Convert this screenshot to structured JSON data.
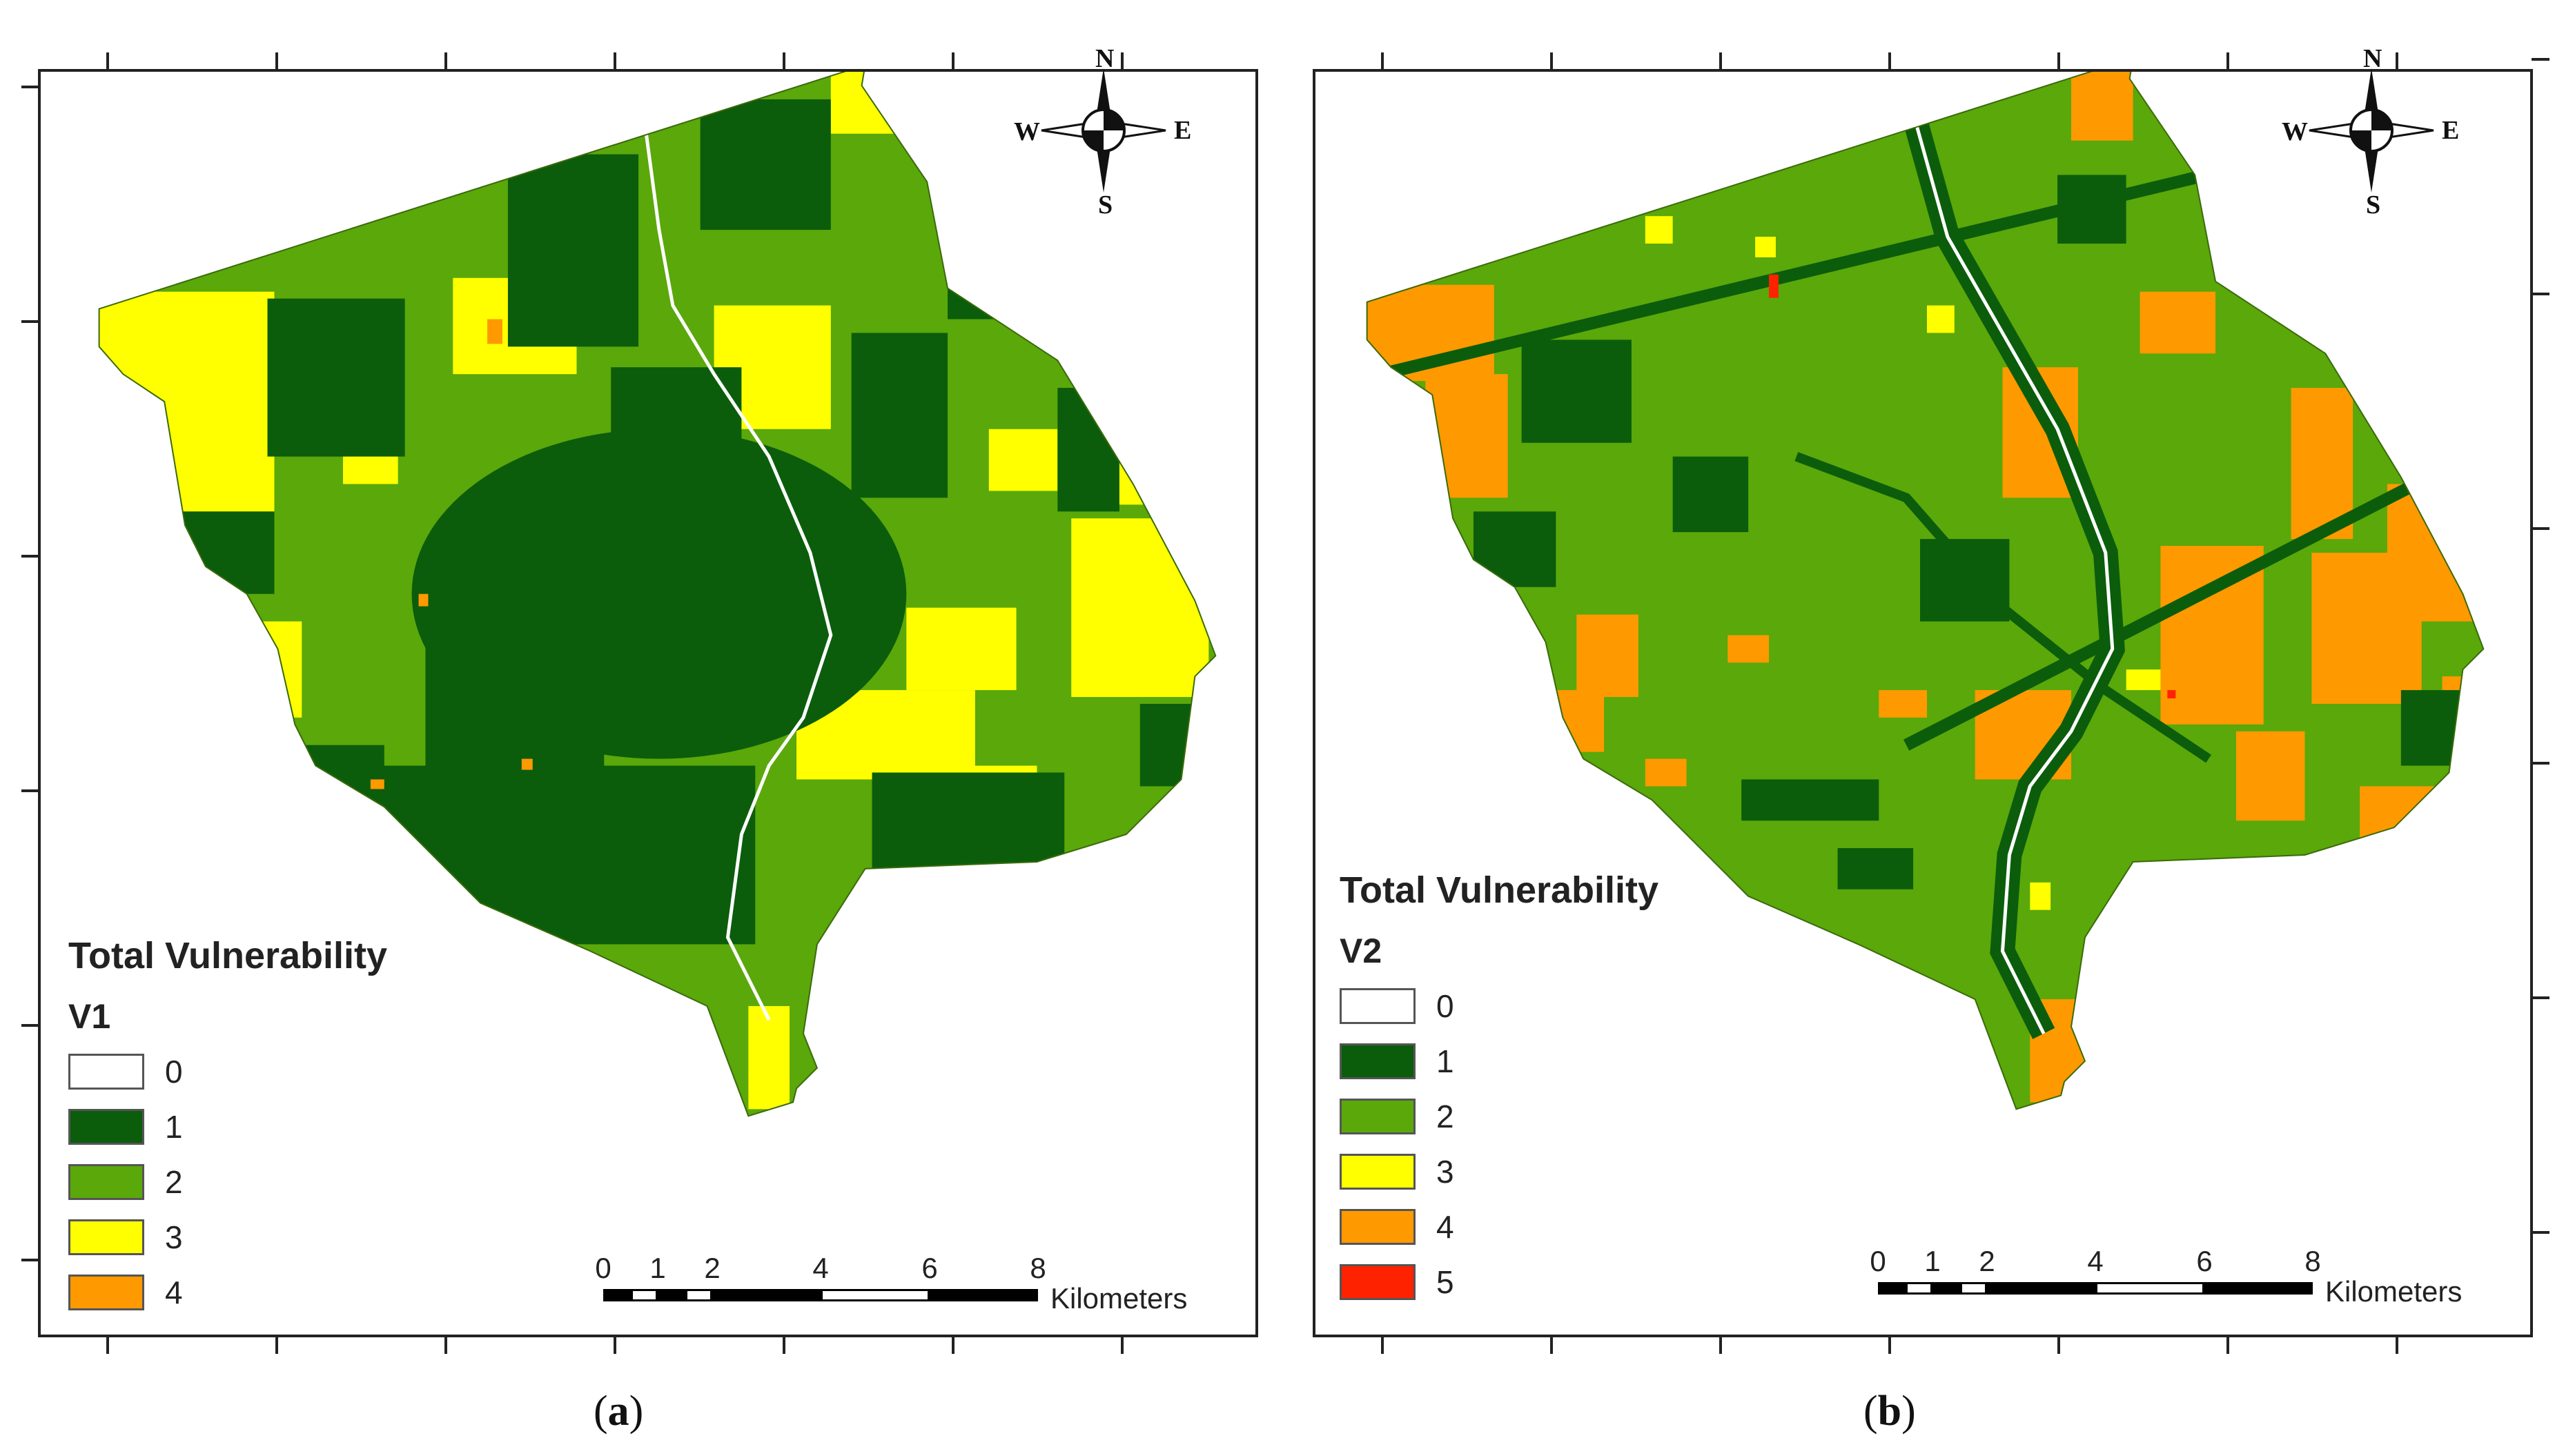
{
  "panels": [
    {
      "id": "a",
      "caption_letter": "a",
      "legend": {
        "title": "Total Vulnerability",
        "field": "V1",
        "classes": [
          {
            "label": "0",
            "color": "#ffffff"
          },
          {
            "label": "1",
            "color": "#0b5d0b"
          },
          {
            "label": "2",
            "color": "#5aa80a"
          },
          {
            "label": "3",
            "color": "#ffff00"
          },
          {
            "label": "4",
            "color": "#ff9900"
          }
        ]
      }
    },
    {
      "id": "b",
      "caption_letter": "b",
      "legend": {
        "title": "Total Vulnerability",
        "field": "V2",
        "classes": [
          {
            "label": "0",
            "color": "#ffffff"
          },
          {
            "label": "1",
            "color": "#0b5d0b"
          },
          {
            "label": "2",
            "color": "#5aa80a"
          },
          {
            "label": "3",
            "color": "#ffff00"
          },
          {
            "label": "4",
            "color": "#ff9900"
          },
          {
            "label": "5",
            "color": "#ff2200"
          }
        ]
      }
    }
  ],
  "compass": {
    "n": "N",
    "s": "S",
    "e": "E",
    "w": "W"
  },
  "scalebar": {
    "labels": [
      "0",
      "1",
      "2",
      "4",
      "6",
      "8"
    ],
    "units": "Kilometers"
  }
}
